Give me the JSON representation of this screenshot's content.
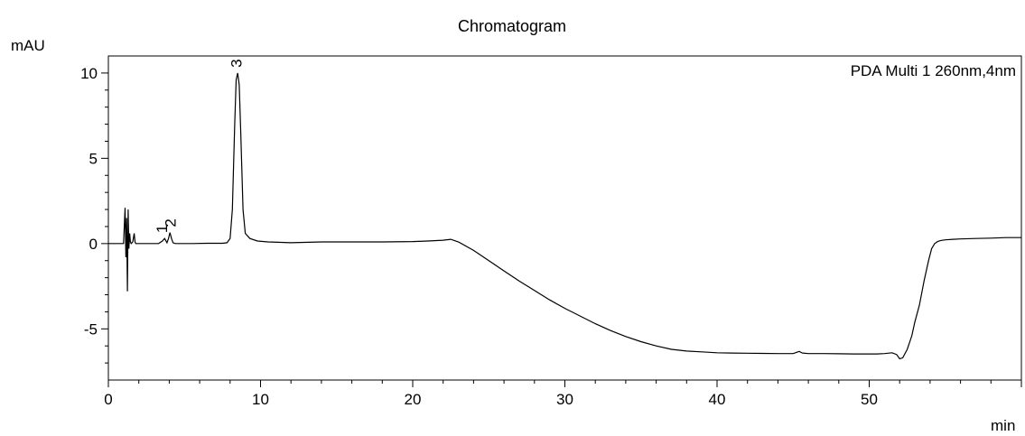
{
  "chart_data": {
    "type": "line",
    "title": "Chromatogram",
    "ylabel": "mAU",
    "xlabel": "min",
    "legend": "PDA Multi 1 260nm,4nm",
    "legend_position": "top-right",
    "xlim": [
      0,
      60
    ],
    "ylim": [
      -8,
      11
    ],
    "x_ticks": [
      0,
      10,
      20,
      30,
      40,
      50
    ],
    "y_ticks": [
      -5,
      0,
      5,
      10
    ],
    "x_tick_labels": [
      "0",
      "10",
      "20",
      "30",
      "40",
      "50"
    ],
    "y_tick_labels": [
      "-5",
      "0",
      "5",
      "10"
    ],
    "grid": false,
    "series": [
      {
        "color": "#000000",
        "x": [
          0,
          0.5,
          1.0,
          1.1,
          1.15,
          1.2,
          1.25,
          1.3,
          1.35,
          1.4,
          1.45,
          1.5,
          1.6,
          1.7,
          1.75,
          1.8,
          1.9,
          2.2,
          3.3,
          3.55,
          3.7,
          3.85,
          3.95,
          4.05,
          4.15,
          4.25,
          4.4,
          4.7,
          5.5,
          6.5,
          7.5,
          7.8,
          8.0,
          8.15,
          8.3,
          8.4,
          8.5,
          8.6,
          8.7,
          8.85,
          9.0,
          9.3,
          9.8,
          10.5,
          12,
          14,
          16,
          18,
          20,
          21,
          22,
          22.5,
          23,
          24,
          25,
          26,
          27,
          28,
          29,
          30,
          31,
          32,
          33,
          34,
          35,
          36,
          37,
          38,
          39,
          40,
          41,
          42,
          43,
          44,
          45,
          45.4,
          45.6,
          46,
          47,
          48,
          49,
          50,
          50.5,
          51,
          51.5,
          51.8,
          52.0,
          52.2,
          52.5,
          52.8,
          53.0,
          53.3,
          53.6,
          53.9,
          54.1,
          54.3,
          54.5,
          54.7,
          55.0,
          55.5,
          56,
          57,
          58,
          59,
          60
        ],
        "y": [
          0,
          0,
          0,
          2.1,
          -0.8,
          1.5,
          -2.8,
          2.0,
          -0.3,
          0.6,
          0.1,
          0,
          0.1,
          0.6,
          0.1,
          0,
          0,
          0,
          0,
          0.15,
          0.3,
          0.05,
          0.3,
          0.65,
          0.3,
          0.05,
          0,
          0,
          0,
          0.02,
          0.02,
          0.05,
          0.3,
          2.0,
          7.0,
          9.6,
          10.0,
          9.3,
          6.5,
          2.0,
          0.6,
          0.3,
          0.15,
          0.1,
          0.05,
          0.1,
          0.1,
          0.1,
          0.12,
          0.15,
          0.2,
          0.25,
          0.1,
          -0.4,
          -1.0,
          -1.6,
          -2.2,
          -2.75,
          -3.3,
          -3.8,
          -4.25,
          -4.7,
          -5.1,
          -5.45,
          -5.75,
          -6.0,
          -6.2,
          -6.3,
          -6.35,
          -6.4,
          -6.42,
          -6.43,
          -6.44,
          -6.45,
          -6.45,
          -6.32,
          -6.42,
          -6.45,
          -6.45,
          -6.46,
          -6.47,
          -6.47,
          -6.47,
          -6.45,
          -6.4,
          -6.5,
          -6.75,
          -6.7,
          -6.2,
          -5.4,
          -4.6,
          -3.6,
          -2.2,
          -1.0,
          -0.3,
          0.0,
          0.12,
          0.18,
          0.22,
          0.25,
          0.27,
          0.3,
          0.32,
          0.35,
          0.35
        ]
      }
    ],
    "annotations": [
      {
        "text": "1",
        "x": 3.6,
        "y": 0.3
      },
      {
        "text": "2",
        "x": 4.15,
        "y": 0.65
      },
      {
        "text": "3",
        "x": 8.5,
        "y": 10.0
      }
    ]
  }
}
